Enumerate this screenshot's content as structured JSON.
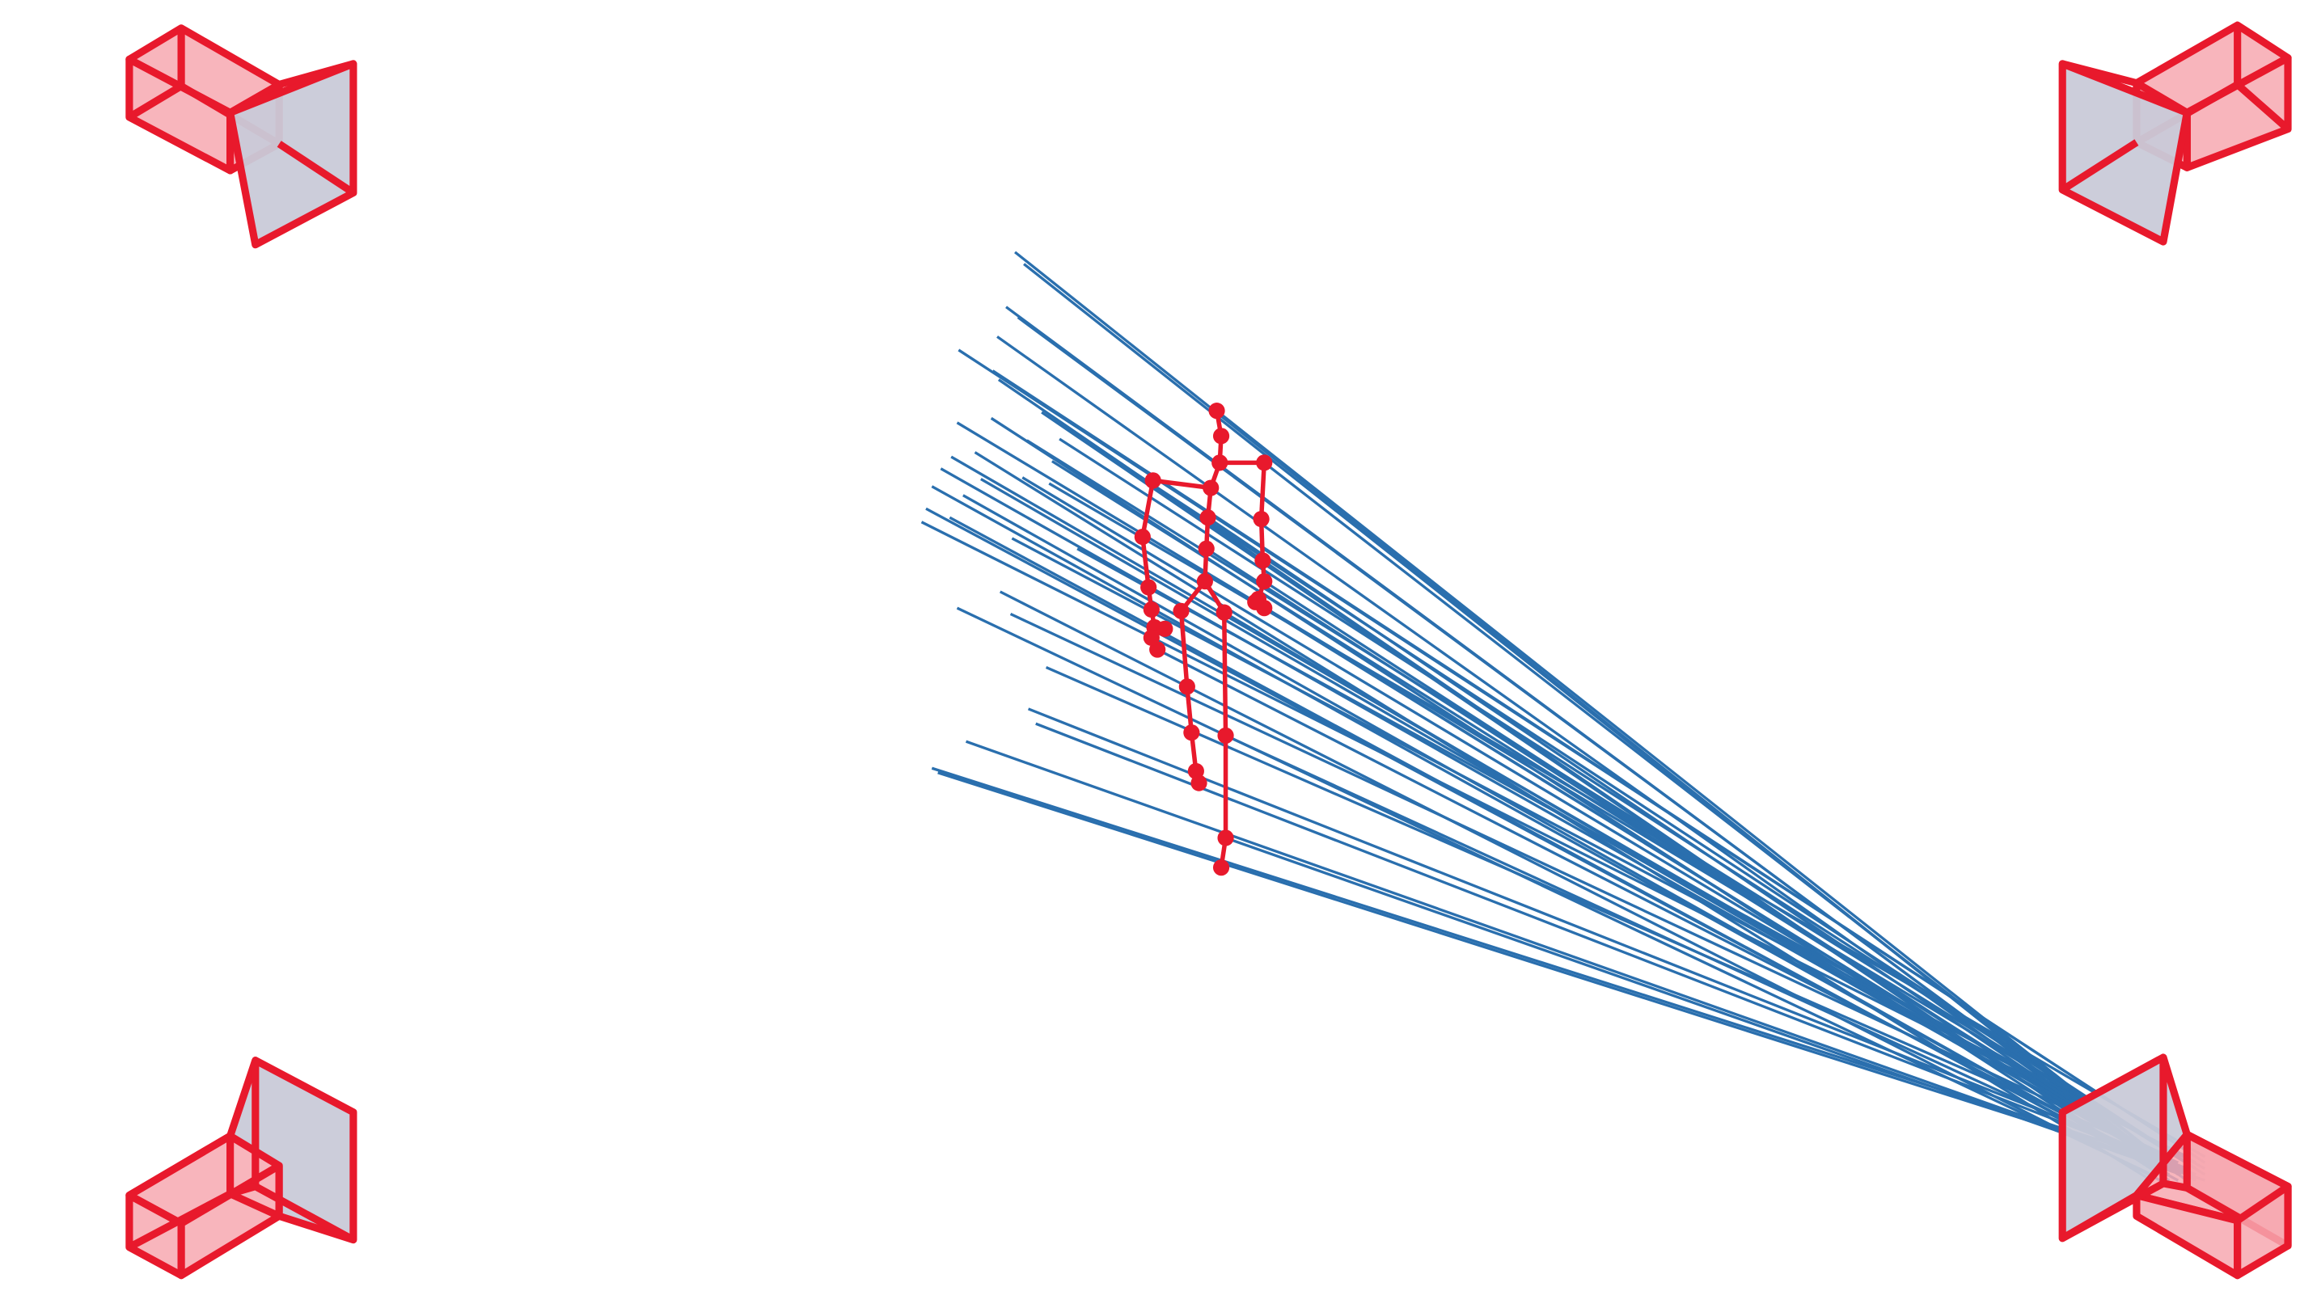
{
  "colors": {
    "camera": "#e8192c",
    "camera_fill": "#f7a8b0",
    "lens_fill": "#c9cad8",
    "ray": "#2a6fae",
    "skeleton": "#e8192c",
    "background": "#ffffff"
  },
  "cameras": [
    {
      "name": "camera-top-left"
    },
    {
      "name": "camera-top-right"
    },
    {
      "name": "camera-bottom-left"
    },
    {
      "name": "camera-bottom-right"
    }
  ],
  "ray_source_camera": "camera-bottom-right",
  "skeleton": {
    "joint_count": 31,
    "bone_count": 30
  }
}
